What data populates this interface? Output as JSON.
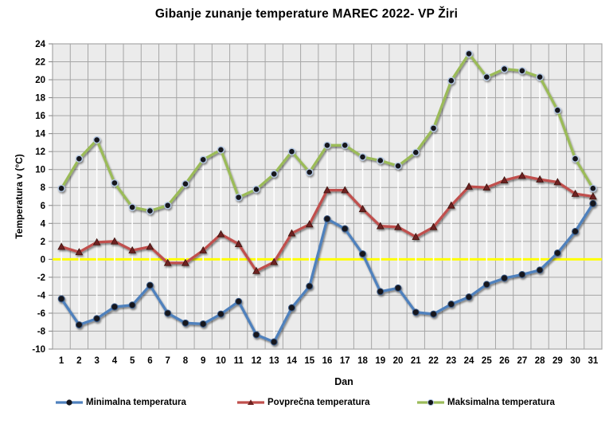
{
  "chart_data": {
    "type": "line",
    "title": "Gibanje zunanje temperature MAREC 2022- VP Žiri",
    "xlabel": "Dan",
    "ylabel": "Temperatura v (°C)",
    "ylim": [
      -10,
      24
    ],
    "ytick_step": 2,
    "yticks": [
      24,
      22,
      20,
      18,
      16,
      14,
      12,
      10,
      8,
      6,
      4,
      2,
      0,
      -2,
      -4,
      -6,
      -8,
      -10
    ],
    "x": [
      1,
      2,
      3,
      4,
      5,
      6,
      7,
      8,
      9,
      10,
      11,
      12,
      13,
      14,
      15,
      16,
      17,
      18,
      19,
      20,
      21,
      22,
      23,
      24,
      25,
      26,
      27,
      28,
      29,
      30,
      31
    ],
    "grid": true,
    "legend_position": "bottom",
    "plot_bg": "#EBEBEB",
    "grid_color": "#A6A6A6",
    "zero_line_color": "#FFFF00",
    "high_low_line_color": "#FFFFFF",
    "series": [
      {
        "name": "Minimalna temperatura",
        "color": "#4F81BD",
        "marker": "circle",
        "values": [
          -4.4,
          -7.3,
          -6.6,
          -5.3,
          -5.1,
          -2.9,
          -6.0,
          -7.1,
          -7.2,
          -6.1,
          -4.7,
          -8.4,
          -9.2,
          -5.4,
          -3.0,
          4.5,
          3.4,
          0.6,
          -3.6,
          -3.2,
          -5.9,
          -6.1,
          -5.0,
          -4.2,
          -2.8,
          -2.1,
          -1.7,
          -1.2,
          0.7,
          3.1,
          6.2
        ]
      },
      {
        "name": "Povprečna temperatura",
        "color": "#C0504D",
        "marker": "triangle",
        "values": [
          1.4,
          0.8,
          1.9,
          2.0,
          1.0,
          1.4,
          -0.4,
          -0.4,
          1.0,
          2.8,
          1.7,
          -1.3,
          -0.3,
          2.9,
          3.9,
          7.7,
          7.7,
          5.6,
          3.7,
          3.6,
          2.5,
          3.6,
          6.0,
          8.1,
          8.0,
          8.8,
          9.3,
          8.9,
          8.6,
          7.3,
          7.0
        ]
      },
      {
        "name": "Maksimalna temperatura",
        "color": "#9BBB59",
        "marker": "circle",
        "values": [
          7.9,
          11.2,
          13.3,
          8.5,
          5.8,
          5.4,
          6.0,
          8.4,
          11.1,
          12.2,
          6.9,
          7.8,
          9.5,
          12.0,
          9.7,
          12.7,
          12.7,
          11.4,
          11.0,
          10.4,
          11.9,
          14.6,
          19.9,
          22.9,
          20.3,
          21.2,
          21.0,
          20.3,
          16.6,
          11.2,
          7.9
        ]
      }
    ]
  }
}
